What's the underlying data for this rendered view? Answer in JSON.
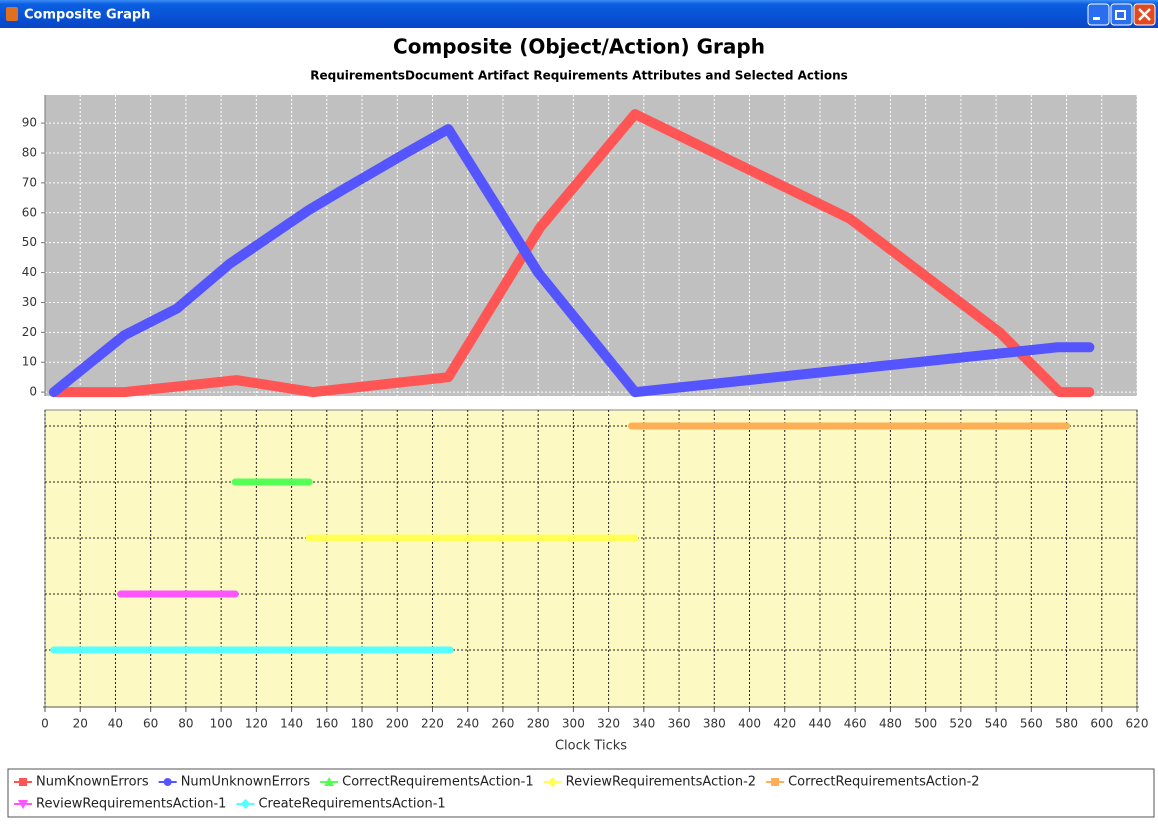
{
  "window": {
    "title": "Composite Graph"
  },
  "chart_data": [
    {
      "type": "line",
      "title": "Composite (Object/Action) Graph",
      "subtitle": "RequirementsDocument Artifact Requirements Attributes and Selected Actions",
      "xlim": [
        0,
        620
      ],
      "xticks": [
        0,
        20,
        40,
        60,
        80,
        100,
        120,
        140,
        160,
        180,
        200,
        220,
        240,
        260,
        280,
        300,
        320,
        340,
        360,
        380,
        400,
        420,
        440,
        460,
        480,
        500,
        520,
        540,
        560,
        580,
        600,
        620
      ],
      "ylim": [
        -1.3,
        99.4
      ],
      "yticks": [
        0,
        10,
        20,
        30,
        40,
        50,
        60,
        70,
        80,
        90
      ],
      "grid": true,
      "series": [
        {
          "name": "NumKnownErrors",
          "color": "#ff5555",
          "x": [
            6,
            45,
            109,
            152,
            229,
            281,
            335,
            457,
            542,
            576,
            593
          ],
          "values": [
            0,
            0,
            4,
            0,
            5,
            55,
            93,
            58,
            20,
            0,
            0
          ]
        },
        {
          "name": "NumUnknownErrors",
          "color": "#5555ff",
          "x": [
            5,
            45,
            75,
            105,
            125,
            150,
            170,
            205,
            229,
            280,
            335,
            575,
            593
          ],
          "values": [
            0,
            19,
            28,
            43,
            51,
            61,
            68,
            80,
            88,
            40,
            0,
            15,
            15
          ]
        }
      ]
    },
    {
      "type": "segment",
      "x_label": "Clock Ticks",
      "xlim": [
        0,
        620
      ],
      "xticks": [
        0,
        20,
        40,
        60,
        80,
        100,
        120,
        140,
        160,
        180,
        200,
        220,
        240,
        260,
        280,
        300,
        320,
        340,
        360,
        380,
        400,
        420,
        440,
        460,
        480,
        500,
        520,
        540,
        560,
        580,
        600,
        620
      ],
      "grid": true,
      "series": [
        {
          "name": "CorrectRequirementsAction-1",
          "color": "#55ff55",
          "start": 108,
          "end": 150
        },
        {
          "name": "ReviewRequirementsAction-2",
          "color": "#ffff55",
          "start": 150,
          "end": 335
        },
        {
          "name": "CorrectRequirementsAction-2",
          "color": "#ffaf55",
          "start": 333,
          "end": 580
        },
        {
          "name": "ReviewRequirementsAction-1",
          "color": "#ff55ff",
          "start": 43,
          "end": 108
        },
        {
          "name": "CreateRequirementsAction-1",
          "color": "#55ffff",
          "start": 5,
          "end": 230
        }
      ]
    }
  ]
}
